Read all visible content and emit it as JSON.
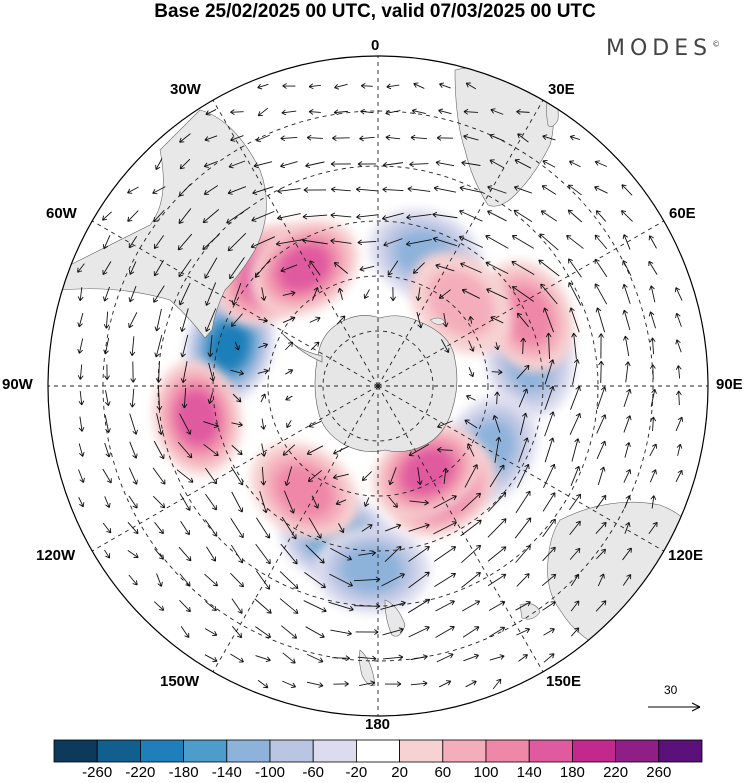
{
  "title": "Base 25/02/2025 00 UTC, valid 07/03/2025 00 UTC",
  "brand": "MODES",
  "brand_mark": "©",
  "longitude_labels": {
    "lon_0": "0",
    "lon_30e": "30E",
    "lon_60e": "60E",
    "lon_90e": "90E",
    "lon_120e": "120E",
    "lon_150e": "150E",
    "lon_180": "180",
    "lon_150w": "150W",
    "lon_120w": "120W",
    "lon_90w": "90W",
    "lon_60w": "60W",
    "lon_30w": "30W"
  },
  "reference_vector": "30",
  "colorbar": {
    "ticks": [
      "-260",
      "-220",
      "-180",
      "-140",
      "-100",
      "-60",
      "-20",
      "20",
      "60",
      "100",
      "140",
      "180",
      "220",
      "260"
    ],
    "colors": [
      "#0d3a5a",
      "#125f8f",
      "#1f7fba",
      "#4d9dcc",
      "#8db3db",
      "#b9c5e2",
      "#dcdcee",
      "#ffffff",
      "#f7d2d2",
      "#f4aebb",
      "#ef87a8",
      "#e05aa0",
      "#c3288c",
      "#8e1f86",
      "#5b117a"
    ]
  },
  "anomaly_centers": [
    {
      "lon": -75,
      "lat": -48,
      "value": -200
    },
    {
      "lon": 20,
      "lat": -52,
      "value": -120
    },
    {
      "lon": 80,
      "lat": -48,
      "value": -120
    },
    {
      "lon": 120,
      "lat": -55,
      "value": -110
    },
    {
      "lon": -165,
      "lat": -47,
      "value": -170
    },
    {
      "lon": -178,
      "lat": -40,
      "value": -120
    },
    {
      "lon": -100,
      "lat": -40,
      "value": 160
    },
    {
      "lon": -45,
      "lat": -47,
      "value": 150
    },
    {
      "lon": -32,
      "lat": -52,
      "value": 140
    },
    {
      "lon": 65,
      "lat": -45,
      "value": 110
    },
    {
      "lon": 45,
      "lat": -58,
      "value": 90
    },
    {
      "lon": 148,
      "lat": -57,
      "value": 150
    },
    {
      "lon": 150,
      "lat": -63,
      "value": 170
    },
    {
      "lon": -145,
      "lat": -55,
      "value": 100
    }
  ]
}
